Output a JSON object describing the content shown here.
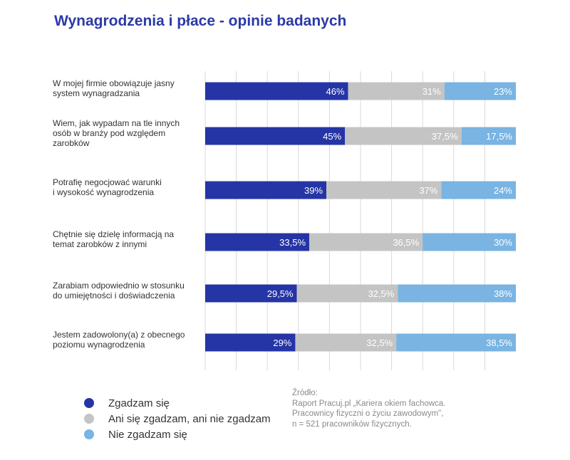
{
  "chart_data": {
    "type": "bar",
    "orientation": "horizontal",
    "stacked": true,
    "title": "Wynagrodzenia i płace - opinie badanych",
    "categories": [
      [
        "W mojej firmie obowiązuje jasny",
        "system wynagradzania"
      ],
      [
        "Wiem, jak wypadam na tle innych",
        "osób w branży pod względem",
        "zarobków"
      ],
      [
        "Potrafię negocjować warunki",
        "i wysokość wynagrodzenia"
      ],
      [
        "Chętnie się dzielę informacją na",
        "temat zarobków z innymi"
      ],
      [
        "Zarabiam odpowiednio w stosunku",
        "do umiejętności i doświadczenia"
      ],
      [
        "Jestem zadowolony(a) z obecnego",
        "poziomu wynagrodzenia"
      ]
    ],
    "series": [
      {
        "name": "Zgadzam się",
        "color": "#2535a6",
        "values": [
          46,
          45,
          39,
          33.5,
          29.5,
          29
        ],
        "labels": [
          "46%",
          "45%",
          "39%",
          "33,5%",
          "29,5%",
          "29%"
        ]
      },
      {
        "name": "Ani się zgadzam, ani nie zgadzam",
        "color": "#c4c4c4",
        "values": [
          31,
          37.5,
          37,
          36.5,
          32.5,
          32.5
        ],
        "labels": [
          "31%",
          "37,5%",
          "37%",
          "36,5%",
          "32,5%",
          "32,5%"
        ]
      },
      {
        "name": "Nie zgadzam się",
        "color": "#79b4e2",
        "values": [
          23,
          17.5,
          24,
          30,
          38,
          38.5
        ],
        "labels": [
          "23%",
          "17,5%",
          "24%",
          "30%",
          "38%",
          "38,5%"
        ]
      }
    ],
    "xlim": [
      0,
      100
    ],
    "grid": true,
    "legend": "bottom-left"
  },
  "source": {
    "lines": [
      "Źródło:",
      "Raport Pracuj.pl „Kariera okiem fachowca.",
      "Pracownicy fizyczni o życiu zawodowym\",",
      "n = 521 pracowników fizycznych."
    ]
  }
}
